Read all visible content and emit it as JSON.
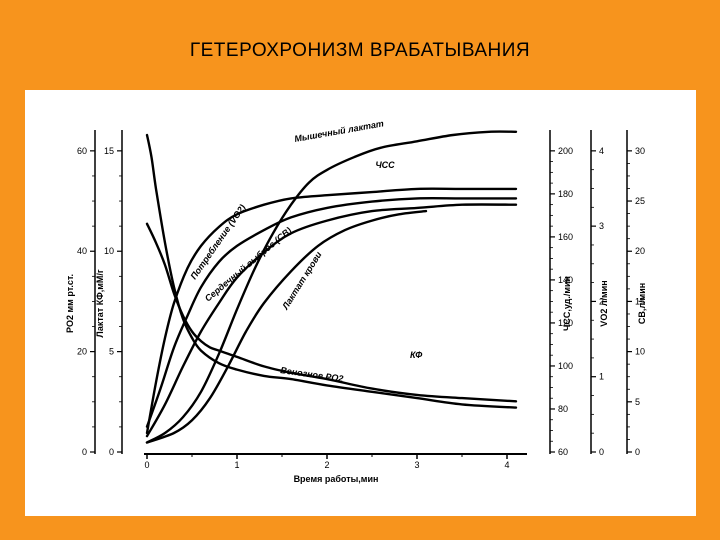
{
  "slide": {
    "title": "ГЕТЕРОХРОНИЗМ  ВРАБАТЫВАНИЯ"
  },
  "chart_data": {
    "type": "line",
    "xlabel": "Время работы,мин",
    "xlim": [
      0,
      4.2
    ],
    "x_ticks": [
      "0",
      "1",
      "2",
      "3",
      "4"
    ],
    "axes": [
      {
        "label": "PO2 мм рт.ст.",
        "ticks": [
          "0",
          "20",
          "40",
          "60"
        ]
      },
      {
        "label": "Лактат КФ,мМ/г",
        "ticks": [
          "0",
          "5",
          "10",
          "15"
        ]
      },
      {
        "label": "ЧСС,уд./мин",
        "ticks": [
          "60",
          "80",
          "100",
          "120",
          "140",
          "160",
          "180",
          "200"
        ]
      },
      {
        "label": "VO2 л/мин",
        "ticks": [
          "0",
          "1",
          "2",
          "3",
          "4"
        ]
      },
      {
        "label": "СВ,л/мин",
        "ticks": [
          "0",
          "5",
          "10",
          "15",
          "20",
          "25",
          "30"
        ]
      }
    ],
    "series": [
      {
        "name": "Мышечный лактат",
        "x": [
          0,
          0.2,
          0.4,
          0.6,
          0.8,
          1.0,
          1.2,
          1.4,
          1.6,
          1.8,
          2.0,
          2.3,
          2.6,
          3.0,
          3.4,
          3.8,
          4.1
        ],
        "y": [
          0.03,
          0.06,
          0.11,
          0.19,
          0.31,
          0.45,
          0.58,
          0.69,
          0.78,
          0.85,
          0.89,
          0.93,
          0.96,
          0.98,
          1.0,
          1.01,
          1.01
        ]
      },
      {
        "name": "ЧСС",
        "x": [
          0,
          0.1,
          0.2,
          0.3,
          0.45,
          0.6,
          0.8,
          1.0,
          1.3,
          1.6,
          2.0,
          2.5,
          3.0,
          3.5,
          4.1
        ],
        "y": [
          0.06,
          0.22,
          0.36,
          0.47,
          0.58,
          0.65,
          0.71,
          0.75,
          0.78,
          0.8,
          0.81,
          0.82,
          0.83,
          0.83,
          0.83
        ]
      },
      {
        "name": "Потребление (VO2)",
        "x": [
          0,
          0.15,
          0.3,
          0.45,
          0.6,
          0.8,
          1.0,
          1.3,
          1.6,
          2.0,
          2.5,
          3.0,
          3.5,
          4.1
        ],
        "y": [
          0.08,
          0.2,
          0.33,
          0.43,
          0.52,
          0.6,
          0.65,
          0.7,
          0.74,
          0.77,
          0.79,
          0.8,
          0.8,
          0.8
        ]
      },
      {
        "name": "Сердечный выброс (СВ)",
        "x": [
          0,
          0.2,
          0.4,
          0.6,
          0.8,
          1.0,
          1.3,
          1.6,
          2.0,
          2.5,
          3.0,
          3.5,
          4.1
        ],
        "y": [
          0.05,
          0.15,
          0.27,
          0.38,
          0.47,
          0.55,
          0.63,
          0.69,
          0.73,
          0.76,
          0.77,
          0.78,
          0.78
        ]
      },
      {
        "name": "Лактат крови",
        "x": [
          0,
          0.3,
          0.5,
          0.7,
          0.9,
          1.1,
          1.3,
          1.6,
          1.9,
          2.2,
          2.5,
          2.8,
          3.1
        ],
        "y": [
          0.03,
          0.06,
          0.1,
          0.17,
          0.27,
          0.38,
          0.47,
          0.57,
          0.65,
          0.7,
          0.73,
          0.75,
          0.76
        ]
      },
      {
        "name": "КФ",
        "x": [
          0,
          0.1,
          0.2,
          0.3,
          0.4,
          0.5,
          0.6,
          0.7,
          0.8,
          1.0,
          1.3,
          1.6,
          2.0,
          2.5,
          3.0,
          3.5,
          4.1
        ],
        "y": [
          0.72,
          0.66,
          0.59,
          0.5,
          0.43,
          0.38,
          0.35,
          0.33,
          0.32,
          0.3,
          0.27,
          0.25,
          0.23,
          0.2,
          0.18,
          0.17,
          0.16
        ]
      },
      {
        "name": "Венозное PO2",
        "x": [
          0,
          0.05,
          0.1,
          0.2,
          0.3,
          0.4,
          0.5,
          0.6,
          0.8,
          1.0,
          1.3,
          1.6,
          2.0,
          2.5,
          3.0,
          3.5,
          4.1
        ],
        "y": [
          1.0,
          0.93,
          0.83,
          0.66,
          0.52,
          0.42,
          0.36,
          0.32,
          0.28,
          0.26,
          0.24,
          0.23,
          0.21,
          0.19,
          0.17,
          0.15,
          0.14
        ]
      }
    ]
  }
}
